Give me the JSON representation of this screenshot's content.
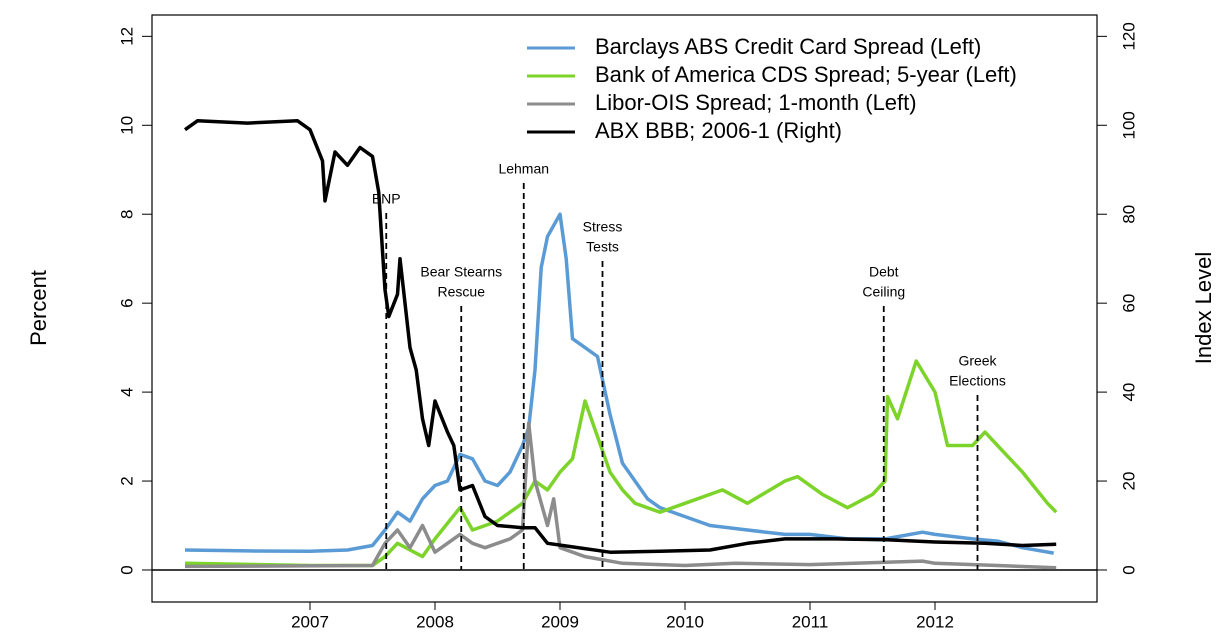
{
  "chart_data": {
    "type": "line",
    "y_label": "Percent",
    "y2_label": "Index Level",
    "xlim": [
      2005.736,
      2013.296
    ],
    "xticks": [
      2007,
      2008,
      2009,
      2010,
      2011,
      2012
    ],
    "ylim": [
      -0.72,
      12.48
    ],
    "yticks": [
      0,
      2,
      4,
      6,
      8,
      10,
      12
    ],
    "y2lim": [
      -7.2,
      124.8
    ],
    "y2ticks": [
      0,
      20,
      40,
      60,
      80,
      100,
      120
    ],
    "legend": "top-right",
    "series": [
      {
        "name": "Barclays ABS Credit Card Spread (Left)",
        "color": "#5b9bd5",
        "x": [
          2006.0,
          2006.5,
          2007.0,
          2007.3,
          2007.5,
          2007.6,
          2007.7,
          2007.8,
          2007.9,
          2008.0,
          2008.1,
          2008.2,
          2008.3,
          2008.4,
          2008.5,
          2008.6,
          2008.7,
          2008.75,
          2008.8,
          2008.85,
          2008.9,
          2009.0,
          2009.05,
          2009.1,
          2009.2,
          2009.3,
          2009.4,
          2009.5,
          2009.6,
          2009.7,
          2009.8,
          2010.0,
          2010.2,
          2010.5,
          2010.8,
          2011.0,
          2011.3,
          2011.6,
          2011.9,
          2012.0,
          2012.3,
          2012.5,
          2012.7,
          2012.95
        ],
        "values": [
          0.45,
          0.43,
          0.42,
          0.45,
          0.55,
          0.9,
          1.3,
          1.1,
          1.6,
          1.9,
          2.0,
          2.6,
          2.5,
          2.0,
          1.9,
          2.2,
          2.8,
          3.2,
          4.5,
          6.8,
          7.5,
          8.0,
          7.0,
          5.2,
          5.0,
          4.8,
          3.5,
          2.4,
          2.0,
          1.6,
          1.4,
          1.2,
          1.0,
          0.9,
          0.8,
          0.8,
          0.7,
          0.7,
          0.85,
          0.8,
          0.7,
          0.65,
          0.5,
          0.38
        ]
      },
      {
        "name": "Bank of America CDS Spread; 5-year (Left)",
        "color": "#7cd42a",
        "x": [
          2006.0,
          2007.0,
          2007.5,
          2007.6,
          2007.7,
          2007.9,
          2008.0,
          2008.2,
          2008.3,
          2008.5,
          2008.7,
          2008.8,
          2008.9,
          2009.0,
          2009.1,
          2009.2,
          2009.3,
          2009.4,
          2009.5,
          2009.6,
          2009.8,
          2010.0,
          2010.3,
          2010.5,
          2010.8,
          2010.9,
          2011.1,
          2011.3,
          2011.5,
          2011.6,
          2011.62,
          2011.7,
          2011.85,
          2012.0,
          2012.1,
          2012.3,
          2012.4,
          2012.5,
          2012.7,
          2012.9,
          2012.97
        ],
        "values": [
          0.15,
          0.1,
          0.1,
          0.3,
          0.6,
          0.3,
          0.7,
          1.4,
          0.9,
          1.1,
          1.5,
          2.0,
          1.8,
          2.2,
          2.5,
          3.8,
          3.0,
          2.2,
          1.8,
          1.5,
          1.3,
          1.5,
          1.8,
          1.5,
          2.0,
          2.1,
          1.7,
          1.4,
          1.7,
          2.0,
          3.9,
          3.4,
          4.7,
          4.0,
          2.8,
          2.8,
          3.1,
          2.8,
          2.2,
          1.5,
          1.3
        ]
      },
      {
        "name": "Libor-OIS Spread; 1-month (Left)",
        "color": "#8c8c8c",
        "x": [
          2006.0,
          2007.5,
          2007.6,
          2007.7,
          2007.8,
          2007.9,
          2008.0,
          2008.2,
          2008.3,
          2008.4,
          2008.6,
          2008.7,
          2008.75,
          2008.8,
          2008.9,
          2008.95,
          2009.0,
          2009.2,
          2009.5,
          2010.0,
          2010.4,
          2011.0,
          2011.9,
          2012.0,
          2012.5,
          2012.97
        ],
        "values": [
          0.08,
          0.1,
          0.6,
          0.9,
          0.5,
          1.0,
          0.4,
          0.8,
          0.6,
          0.5,
          0.7,
          0.9,
          3.3,
          2.0,
          1.0,
          1.6,
          0.5,
          0.3,
          0.15,
          0.1,
          0.15,
          0.12,
          0.2,
          0.15,
          0.1,
          0.05
        ]
      },
      {
        "name": "ABX BBB; 2006-1 (Right)",
        "color": "#000000",
        "axis": "y2",
        "x": [
          2006.0,
          2006.1,
          2006.5,
          2006.9,
          2007.0,
          2007.1,
          2007.12,
          2007.2,
          2007.3,
          2007.4,
          2007.5,
          2007.55,
          2007.6,
          2007.63,
          2007.7,
          2007.72,
          2007.8,
          2007.85,
          2007.9,
          2007.95,
          2008.0,
          2008.1,
          2008.15,
          2008.2,
          2008.3,
          2008.4,
          2008.5,
          2008.7,
          2008.8,
          2008.9,
          2009.1,
          2009.4,
          2009.8,
          2010.2,
          2010.5,
          2010.8,
          2011.2,
          2011.6,
          2012.0,
          2012.4,
          2012.7,
          2012.97
        ],
        "values": [
          99,
          101,
          100.5,
          101,
          99,
          92,
          83,
          94,
          91,
          95,
          93,
          85,
          63,
          57,
          62,
          70,
          50,
          45,
          34,
          28,
          38,
          31,
          28,
          18,
          19,
          12,
          10,
          9.5,
          9.5,
          6,
          5.2,
          4,
          4.2,
          4.5,
          6,
          7,
          7,
          6.8,
          6.3,
          6.0,
          5.5,
          5.8
        ]
      }
    ],
    "annotations": [
      {
        "x": 2007.61,
        "text": [
          "BNP"
        ]
      },
      {
        "x": 2008.21,
        "text": [
          "Bear Stearns",
          "Rescue"
        ]
      },
      {
        "x": 2008.71,
        "text": [
          "Lehman"
        ]
      },
      {
        "x": 2009.34,
        "text": [
          "Stress",
          "Tests"
        ]
      },
      {
        "x": 2011.59,
        "text": [
          "Debt",
          "Ceiling"
        ]
      },
      {
        "x": 2012.34,
        "text": [
          "Greek",
          "Elections"
        ]
      }
    ]
  }
}
